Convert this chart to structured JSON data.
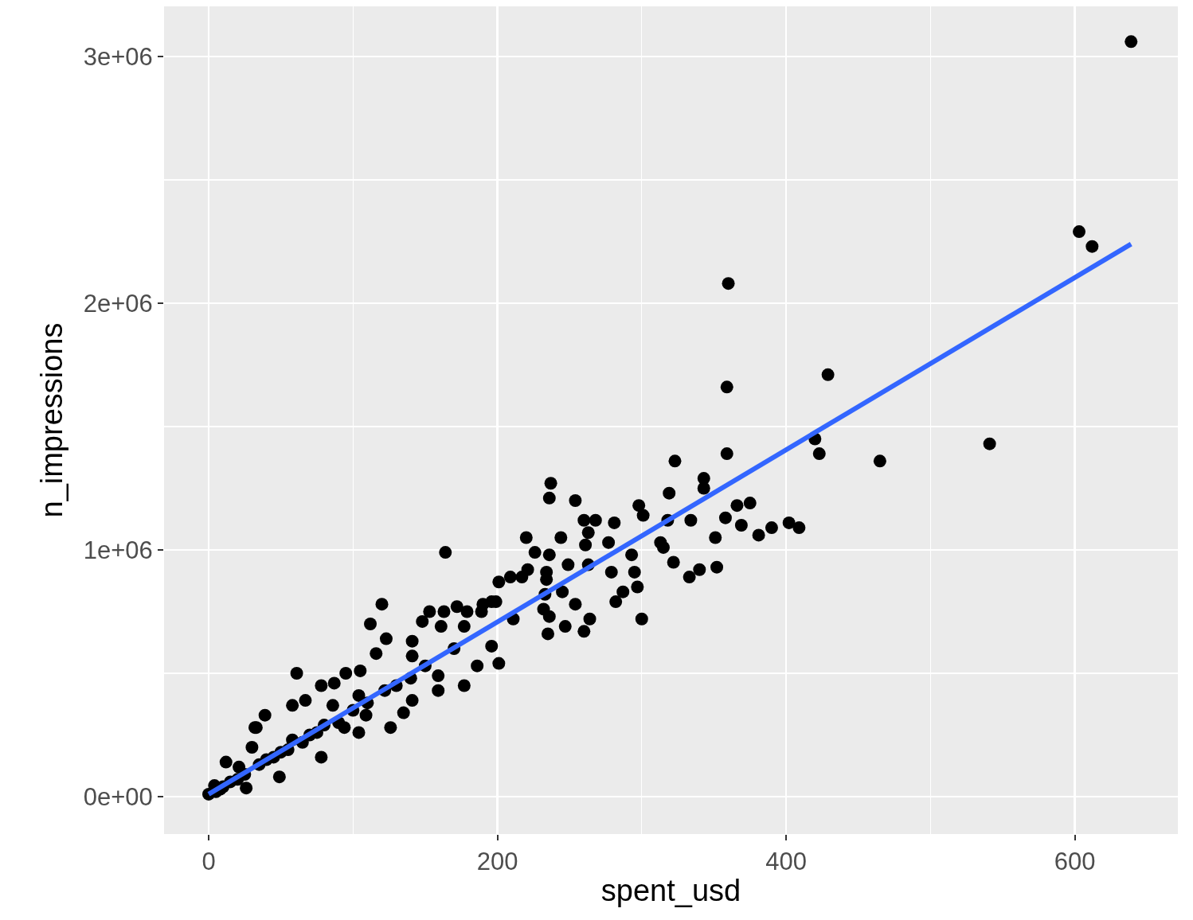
{
  "chart_data": {
    "type": "scatter",
    "xlabel": "spent_usd",
    "ylabel": "n_impressions",
    "marker": "circle",
    "grid": true,
    "xlim": [
      -30.9,
      671.4
    ],
    "ylim": [
      -151600,
      3203000
    ],
    "xticks": [
      0,
      200,
      400,
      600
    ],
    "yticks": [
      {
        "value": 0,
        "label": "0e+00"
      },
      {
        "value": 1000000,
        "label": "1e+06"
      },
      {
        "value": 2000000,
        "label": "2e+06"
      },
      {
        "value": 3000000,
        "label": "3e+06"
      }
    ],
    "series": [
      {
        "color": "#000000",
        "x": [
          639,
          603,
          612,
          360,
          359,
          429,
          359,
          420,
          423,
          465,
          541,
          323,
          343,
          343,
          319,
          298,
          301,
          366,
          375,
          334,
          358,
          369,
          390,
          381,
          402,
          409,
          351,
          313,
          315,
          293,
          322,
          352,
          340,
          333,
          279,
          295,
          297,
          287,
          282,
          300,
          318,
          237,
          236,
          254,
          260,
          268,
          281,
          263,
          277,
          220,
          244,
          261,
          226,
          236,
          249,
          263,
          234,
          217,
          209,
          234,
          201,
          245,
          233,
          254,
          232,
          236,
          235,
          247,
          260,
          264,
          211,
          189,
          196,
          164,
          120,
          112,
          61,
          32,
          123,
          116,
          78,
          87,
          95,
          105,
          33,
          148,
          153,
          163,
          172,
          179,
          190,
          199,
          221,
          141,
          141,
          161,
          159,
          159,
          177,
          186,
          201,
          196,
          177,
          126,
          141,
          104,
          78,
          49,
          26,
          12,
          39,
          58,
          67,
          86,
          104,
          122,
          135,
          109,
          58,
          30,
          21,
          4,
          0,
          94,
          5,
          8,
          10,
          15,
          20,
          25,
          35,
          40,
          45,
          50,
          55,
          65,
          70,
          75,
          80,
          90,
          100,
          110,
          130,
          140,
          150,
          170
        ],
        "values": [
          3060000,
          2290000,
          2230000,
          2080000,
          1660000,
          1710000,
          1390000,
          1450000,
          1390000,
          1360000,
          1430000,
          1360000,
          1290000,
          1250000,
          1230000,
          1180000,
          1140000,
          1180000,
          1190000,
          1120000,
          1130000,
          1100000,
          1090000,
          1060000,
          1110000,
          1090000,
          1050000,
          1030000,
          1010000,
          980000,
          950000,
          930000,
          920000,
          890000,
          910000,
          910000,
          850000,
          830000,
          790000,
          720000,
          1120000,
          1270000,
          1210000,
          1200000,
          1120000,
          1120000,
          1110000,
          1070000,
          1030000,
          1050000,
          1050000,
          1020000,
          990000,
          980000,
          940000,
          940000,
          910000,
          890000,
          890000,
          880000,
          870000,
          830000,
          820000,
          780000,
          760000,
          730000,
          660000,
          690000,
          670000,
          720000,
          720000,
          750000,
          790000,
          990000,
          780000,
          700000,
          500000,
          280000,
          640000,
          580000,
          450000,
          460000,
          500000,
          510000,
          280000,
          710000,
          750000,
          750000,
          770000,
          750000,
          780000,
          790000,
          920000,
          630000,
          570000,
          690000,
          490000,
          430000,
          450000,
          530000,
          540000,
          610000,
          690000,
          280000,
          390000,
          260000,
          160000,
          80000,
          35000,
          140000,
          330000,
          370000,
          390000,
          370000,
          410000,
          430000,
          340000,
          330000,
          230000,
          200000,
          120000,
          45000,
          10000,
          280000,
          20000,
          30000,
          40000,
          60000,
          70000,
          90000,
          130000,
          150000,
          160000,
          180000,
          190000,
          220000,
          250000,
          260000,
          290000,
          300000,
          350000,
          380000,
          450000,
          480000,
          530000,
          600000
        ]
      },
      {
        "type": "line",
        "color": "#3366ff",
        "x": [
          0,
          639
        ],
        "values": [
          10000,
          2240000
        ],
        "marker": "none",
        "line_style": "solid"
      }
    ]
  }
}
